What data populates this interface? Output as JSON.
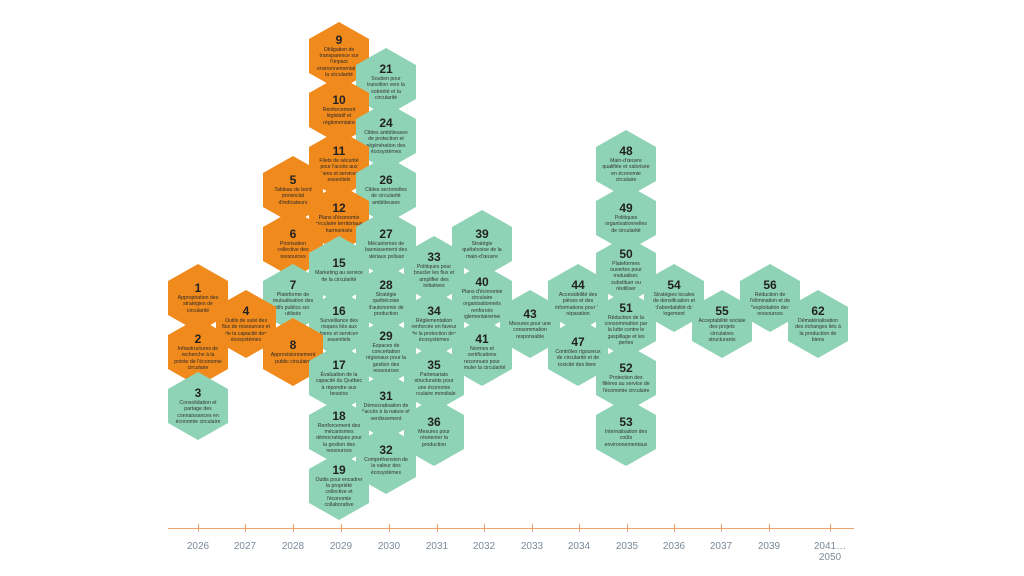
{
  "colors": {
    "green": "#8fd3b6",
    "orange": "#f08a1c",
    "axis": "#f2a06a"
  },
  "nodes": [
    {
      "id": "9",
      "color": "orange",
      "text": "Obligation de transparence sur l'impact environnemental et la circularité"
    },
    {
      "id": "21",
      "color": "green",
      "text": "Soutien pour transition vers la sobriété et la circularité"
    },
    {
      "id": "10",
      "color": "orange",
      "text": "Renforcement législatif et réglementaire"
    },
    {
      "id": "24",
      "color": "green",
      "text": "Cibles ambitieuses de protection et régénération des écosystèmes"
    },
    {
      "id": "11",
      "color": "orange",
      "text": "Filets de sécurité pour l'accès aux biens et services essentiels"
    },
    {
      "id": "5",
      "color": "orange",
      "text": "Tableau de bord provincial d'indicateurs"
    },
    {
      "id": "26",
      "color": "green",
      "text": "Cibles sectorielles de circularité ambitieuses"
    },
    {
      "id": "12",
      "color": "orange",
      "text": "Plans d'économie circulaire territoriaux harmonisés"
    },
    {
      "id": "6",
      "color": "orange",
      "text": "Priorisation collective des ressources"
    },
    {
      "id": "27",
      "color": "green",
      "text": "Mécanismes de bannissement des matériaux polluants"
    },
    {
      "id": "39",
      "color": "green",
      "text": "Stratégie québécoise de la main-d'œuvre"
    },
    {
      "id": "15",
      "color": "green",
      "text": "Marketing au service de la circularité"
    },
    {
      "id": "33",
      "color": "green",
      "text": "Politiques pour boucler les flux et amplifier des initiatives"
    },
    {
      "id": "1",
      "color": "orange",
      "text": "Appropriation des stratégies de circularité"
    },
    {
      "id": "7",
      "color": "green",
      "text": "Plateforme de mutualisation des actifs publics sous-utilisés"
    },
    {
      "id": "28",
      "color": "green",
      "text": "Stratégie québécoise d'autonomie de production"
    },
    {
      "id": "40",
      "color": "green",
      "text": "Plans d'économie circulaire organisationnels renforcés réglementairement"
    },
    {
      "id": "4",
      "color": "orange",
      "text": "Outils de suivi des flux de ressources et de la capacité des écosystèmes"
    },
    {
      "id": "16",
      "color": "green",
      "text": "Surveillance des risques liés aux biens et services essentiels"
    },
    {
      "id": "34",
      "color": "green",
      "text": "Réglementation renforcée en faveur de la protection des écosystèmes"
    },
    {
      "id": "43",
      "color": "green",
      "text": "Mesures pour une consommation responsable"
    },
    {
      "id": "2",
      "color": "orange",
      "text": "Infrastructures de recherche à la pointe de l'économie circulaire"
    },
    {
      "id": "8",
      "color": "orange",
      "text": "Approvisionnement public circulaire"
    },
    {
      "id": "29",
      "color": "green",
      "text": "Espaces de concertation régionaux pour la gestion des ressources"
    },
    {
      "id": "41",
      "color": "green",
      "text": "Normes et certifications reconnues pour stimuler la circularité"
    },
    {
      "id": "17",
      "color": "green",
      "text": "Évaluation de la capacité du Québec à répondre aux besoins"
    },
    {
      "id": "35",
      "color": "green",
      "text": "Partenariats structurants pour une économie circulaire mondiale"
    },
    {
      "id": "3",
      "color": "green",
      "text": "Consolidation et partage des connaissances en économie circulaire"
    },
    {
      "id": "31",
      "color": "green",
      "text": "Démocratisation de l'accès à la nature et verdissement"
    },
    {
      "id": "18",
      "color": "green",
      "text": "Renforcement des mécanismes démocratiques pour la gestion des ressources"
    },
    {
      "id": "36",
      "color": "green",
      "text": "Mesures pour réorienter la production"
    },
    {
      "id": "32",
      "color": "green",
      "text": "Compréhension de la valeur des écosystèmes"
    },
    {
      "id": "19",
      "color": "green",
      "text": "Outils pour encadrer la propriété collective et l'économie collaborative"
    },
    {
      "id": "48",
      "color": "green",
      "text": "Main-d'œuvre qualifiée et valorisée en économie circulaire"
    },
    {
      "id": "49",
      "color": "green",
      "text": "Politiques organisationnelles de circularité"
    },
    {
      "id": "50",
      "color": "green",
      "text": "Plateformes ouvertes pour mutualiser, substituer ou réutiliser"
    },
    {
      "id": "44",
      "color": "green",
      "text": "Accessibilité des pièces et des informations pour la réparation"
    },
    {
      "id": "54",
      "color": "green",
      "text": "Stratégies locales de densification et d'abordabilité du logement"
    },
    {
      "id": "56",
      "color": "green",
      "text": "Réduction de l'élimination et de l'exploitation des ressources"
    },
    {
      "id": "51",
      "color": "green",
      "text": "Réduction de la consommation par la lutte contre le gaspillage et les pertes"
    },
    {
      "id": "55",
      "color": "green",
      "text": "Acceptabilité sociale des projets circulaires structurants"
    },
    {
      "id": "62",
      "color": "green",
      "text": "Dématérialisation des échanges liés à la production de biens"
    },
    {
      "id": "47",
      "color": "green",
      "text": "Contrôles rigoureux de circularité et de toxicité des biens"
    },
    {
      "id": "52",
      "color": "green",
      "text": "Protection des filières au service de l'économie circulaire"
    },
    {
      "id": "53",
      "color": "green",
      "text": "Internalisation des coûts environnementaux"
    }
  ],
  "timeline": [
    "2026",
    "2027",
    "2028",
    "2029",
    "2030",
    "2031",
    "2032",
    "2033",
    "2034",
    "2035",
    "2036",
    "2037",
    "2039",
    "2041…2050"
  ]
}
